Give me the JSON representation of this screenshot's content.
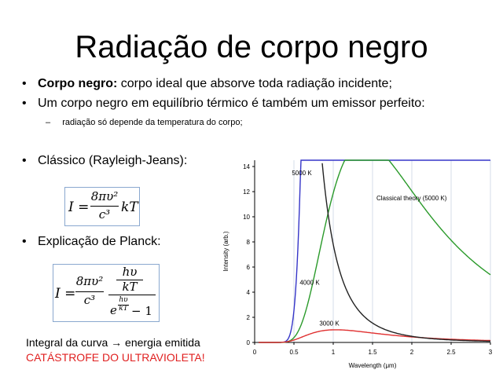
{
  "slide": {
    "title": "Radiação de corpo negro",
    "bullet1_bold": "Corpo negro:",
    "bullet1_rest": " corpo ideal que absorve toda radiação incidente;",
    "bullet2": "Um corpo negro em equilíbrio térmico é também um emissor perfeito:",
    "sub1": "radiação só depende da temperatura do corpo;",
    "bullet3": "Clássico (Rayleigh-Jeans):",
    "bullet4": "Explicação de Planck:",
    "bullet_symbol": "•",
    "dash_symbol": "–",
    "bottom_line1": "Integral da curva → energia emitida",
    "bottom_line2": "CATÁSTROFE DO ULTRAVIOLETA!"
  },
  "formula_rj": {
    "lhs": "I =",
    "num": "8πυ²",
    "den": "c³",
    "tail": "kT"
  },
  "formula_planck": {
    "lhs": "I =",
    "num": "8πυ²",
    "den": "c³",
    "inner_num": "hυ",
    "inner_den": "kT",
    "exp_base": "e",
    "exp_num": "hυ",
    "exp_den": "kT",
    "minus_one": "− 1"
  },
  "chart_data": {
    "type": "line",
    "xlabel": "Wavelength (μm)",
    "ylabel": "Intensity (arb.)",
    "xlim": [
      0,
      3
    ],
    "ylim": [
      0,
      14.5
    ],
    "x_ticks": [
      "0",
      "0.5",
      "1",
      "1.5",
      "2",
      "2.5",
      "3"
    ],
    "x_tick_values": [
      0,
      0.5,
      1,
      1.5,
      2,
      2.5,
      3
    ],
    "y_ticks": [
      "0",
      "2",
      "4",
      "6",
      "8",
      "10",
      "12",
      "14"
    ],
    "y_tick_values": [
      0,
      2,
      4,
      6,
      8,
      10,
      12,
      14
    ],
    "series": [
      {
        "name": "5000 K",
        "color": "#3535c8",
        "peak_x": 0.58,
        "peak_y": 12.8
      },
      {
        "name": "4000 K",
        "color": "#2a9a2a",
        "peak_x": 0.72,
        "peak_y": 4.2
      },
      {
        "name": "3000 K",
        "color": "#e03030",
        "peak_x": 0.97,
        "peak_y": 1.0
      },
      {
        "name": "Classical theory (5000 K)",
        "color": "#222222"
      }
    ],
    "annotations": [
      {
        "text": "5000 K",
        "x": 0.6,
        "y": 13.3
      },
      {
        "text": "4000 K",
        "x": 0.7,
        "y": 4.6
      },
      {
        "text": "3000 K",
        "x": 0.95,
        "y": 1.35
      },
      {
        "text": "Classical theory (5000 K)",
        "x": 1.55,
        "y": 11.3
      }
    ]
  }
}
